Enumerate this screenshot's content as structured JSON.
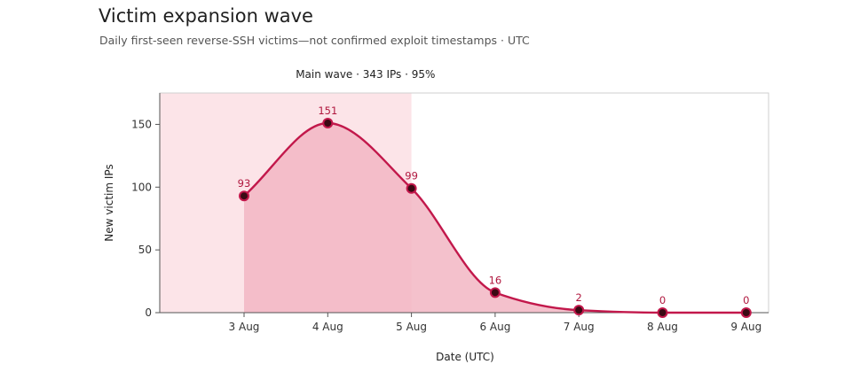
{
  "header": {
    "title": "Victim expansion wave",
    "subtitle": "Daily first-seen reverse-SSH victims—not confirmed exploit timestamps · UTC"
  },
  "chart_data": {
    "type": "area",
    "title": "Victim expansion wave",
    "subtitle": "Daily first-seen reverse-SSH victims—not confirmed exploit timestamps · UTC",
    "xlabel": "Date (UTC)",
    "ylabel": "New victim IPs",
    "categories": [
      "3 Aug",
      "4 Aug",
      "5 Aug",
      "6 Aug",
      "7 Aug",
      "8 Aug",
      "9 Aug"
    ],
    "values": [
      93,
      151,
      99,
      16,
      2,
      0,
      0
    ],
    "value_labels": [
      "93",
      "151",
      "99",
      "16",
      "2",
      "0",
      "0"
    ],
    "ylim": [
      0,
      175
    ],
    "yticks": [
      0,
      50,
      100,
      150
    ],
    "ytick_labels": [
      "0",
      "50",
      "100",
      "150"
    ],
    "grid": false,
    "highlight_band": {
      "from": "3 Aug",
      "to": "5 Aug",
      "label": "Main wave · 343 IPs · 95%"
    },
    "colors": {
      "line": "#c2184b",
      "marker_fill": "#3a0a14",
      "area_fill": "#f2b6c3",
      "band_fill": "#fce4e8",
      "label": "#b0173e"
    }
  }
}
